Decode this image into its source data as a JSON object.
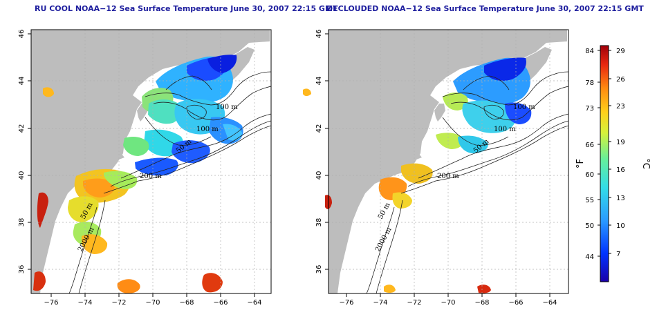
{
  "left_panel": {
    "title": "RU COOL NOAA−12 Sea Surface Temperature June 30, 2007 22:15 GMT",
    "contours": [
      "100 m",
      "100 m",
      "50 m",
      "200 m",
      "50 m",
      "2000 m"
    ]
  },
  "right_panel": {
    "title": "DECLOUDED NOAA−12 Sea Surface Temperature June 30, 2007 22:15 GMT",
    "contours": [
      "100 m",
      "100 m",
      "50 m",
      "200 m",
      "50 m",
      "2000 m"
    ]
  },
  "axes": {
    "x_ticks": [
      "−76",
      "−74",
      "−72",
      "−70",
      "−68",
      "−66",
      "−64"
    ],
    "y_ticks": [
      "36",
      "38",
      "40",
      "42",
      "44",
      "46"
    ]
  },
  "colorbar": {
    "fahrenheit_label": "°F",
    "celsius_label": "°C",
    "fahrenheit_ticks": [
      "84",
      "78",
      "73",
      "66",
      "60",
      "55",
      "50",
      "44"
    ],
    "celsius_ticks": [
      "29",
      "26",
      "23",
      "19",
      "16",
      "13",
      "10",
      "7"
    ]
  },
  "colors": {
    "land": "#bdbdbd",
    "title": "#1e1e9e",
    "grid": "#b0b0b0"
  }
}
